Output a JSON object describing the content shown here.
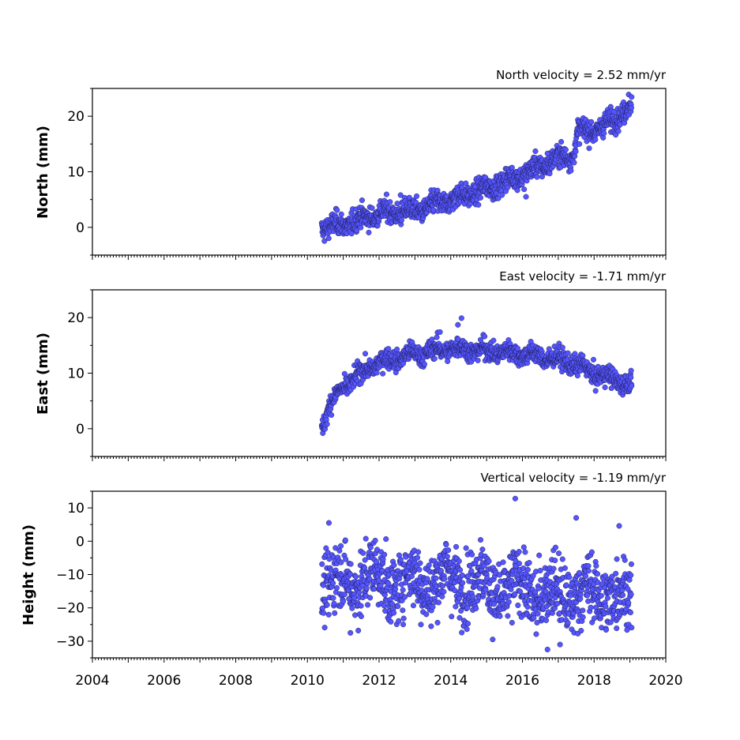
{
  "chart_data": [
    {
      "type": "scatter",
      "id": "north",
      "title": "North velocity = 2.52 mm/yr",
      "ylabel": "North (mm)",
      "xlim": [
        2004,
        2020
      ],
      "ylim": [
        -5,
        25
      ],
      "yticks": [
        0,
        10,
        20
      ],
      "yticklabels": [
        "0",
        "10",
        "20"
      ],
      "xtick_labels_shown": false,
      "trend_points": [
        [
          2010.4,
          0
        ],
        [
          2011.0,
          0.5
        ],
        [
          2012.0,
          2.5
        ],
        [
          2013.0,
          3
        ],
        [
          2014.0,
          5
        ],
        [
          2015.0,
          7
        ],
        [
          2016.0,
          9.5
        ],
        [
          2017.0,
          12.5
        ],
        [
          2017.45,
          13
        ],
        [
          2017.5,
          17
        ],
        [
          2018.0,
          17.5
        ],
        [
          2018.5,
          19
        ],
        [
          2019.0,
          22
        ]
      ],
      "scatter_mm": 1.0,
      "outliers": [
        [
          2012.6,
          5.8
        ],
        [
          2016.7,
          13.3
        ],
        [
          2016.1,
          5.5
        ]
      ],
      "series": [
        {
          "color": "#5555ff",
          "edge": "#1a1a4a"
        }
      ]
    },
    {
      "type": "scatter",
      "id": "east",
      "title": "East velocity = -1.71 mm/yr",
      "ylabel": "East (mm)",
      "xlim": [
        2004,
        2020
      ],
      "ylim": [
        -5,
        25
      ],
      "yticks": [
        0,
        10,
        20
      ],
      "yticklabels": [
        "0",
        "10",
        "20"
      ],
      "xtick_labels_shown": false,
      "trend_points": [
        [
          2010.4,
          0
        ],
        [
          2010.6,
          4
        ],
        [
          2011.0,
          7.5
        ],
        [
          2011.5,
          10
        ],
        [
          2012.0,
          12
        ],
        [
          2013.0,
          13.5
        ],
        [
          2014.0,
          14.5
        ],
        [
          2015.0,
          14
        ],
        [
          2016.0,
          13.5
        ],
        [
          2017.0,
          12.5
        ],
        [
          2017.5,
          11.5
        ],
        [
          2018.0,
          10
        ],
        [
          2018.5,
          9
        ],
        [
          2019.0,
          8
        ]
      ],
      "scatter_mm": 0.9,
      "outliers": [
        [
          2014.3,
          19.9
        ],
        [
          2014.2,
          18.7
        ],
        [
          2013.7,
          17.4
        ]
      ],
      "series": [
        {
          "color": "#5555ff",
          "edge": "#1a1a4a"
        }
      ]
    },
    {
      "type": "scatter",
      "id": "height",
      "title": "Vertical velocity = -1.19 mm/yr",
      "ylabel": "Height (mm)",
      "xlim": [
        2004,
        2020
      ],
      "ylim": [
        -35,
        15
      ],
      "yticks": [
        -30,
        -20,
        -10,
        0,
        10
      ],
      "yticklabels": [
        "−30",
        "−20",
        "−10",
        "0",
        "10"
      ],
      "xticks": [
        2004,
        2006,
        2008,
        2010,
        2012,
        2014,
        2016,
        2018,
        2020
      ],
      "xticklabels": [
        "2004",
        "2006",
        "2008",
        "2010",
        "2012",
        "2014",
        "2016",
        "2018",
        "2020"
      ],
      "xtick_labels_shown": true,
      "trend_points": [
        [
          2010.4,
          -12
        ],
        [
          2011.0,
          -14
        ],
        [
          2012.0,
          -12
        ],
        [
          2013.0,
          -10
        ],
        [
          2014.0,
          -13
        ],
        [
          2015.0,
          -14
        ],
        [
          2016.0,
          -12
        ],
        [
          2017.0,
          -18
        ],
        [
          2018.0,
          -17
        ],
        [
          2018.5,
          -13
        ],
        [
          2019.0,
          -17
        ]
      ],
      "scatter_mm": 5.0,
      "outliers": [
        [
          2015.8,
          12.8
        ],
        [
          2017.5,
          7
        ],
        [
          2010.6,
          5.5
        ],
        [
          2016.7,
          -32.5
        ],
        [
          2017.05,
          -31
        ],
        [
          2011.2,
          -27.5
        ],
        [
          2018.7,
          4.6
        ]
      ],
      "series": [
        {
          "color": "#5555ff",
          "edge": "#1a1a4a"
        }
      ]
    }
  ]
}
